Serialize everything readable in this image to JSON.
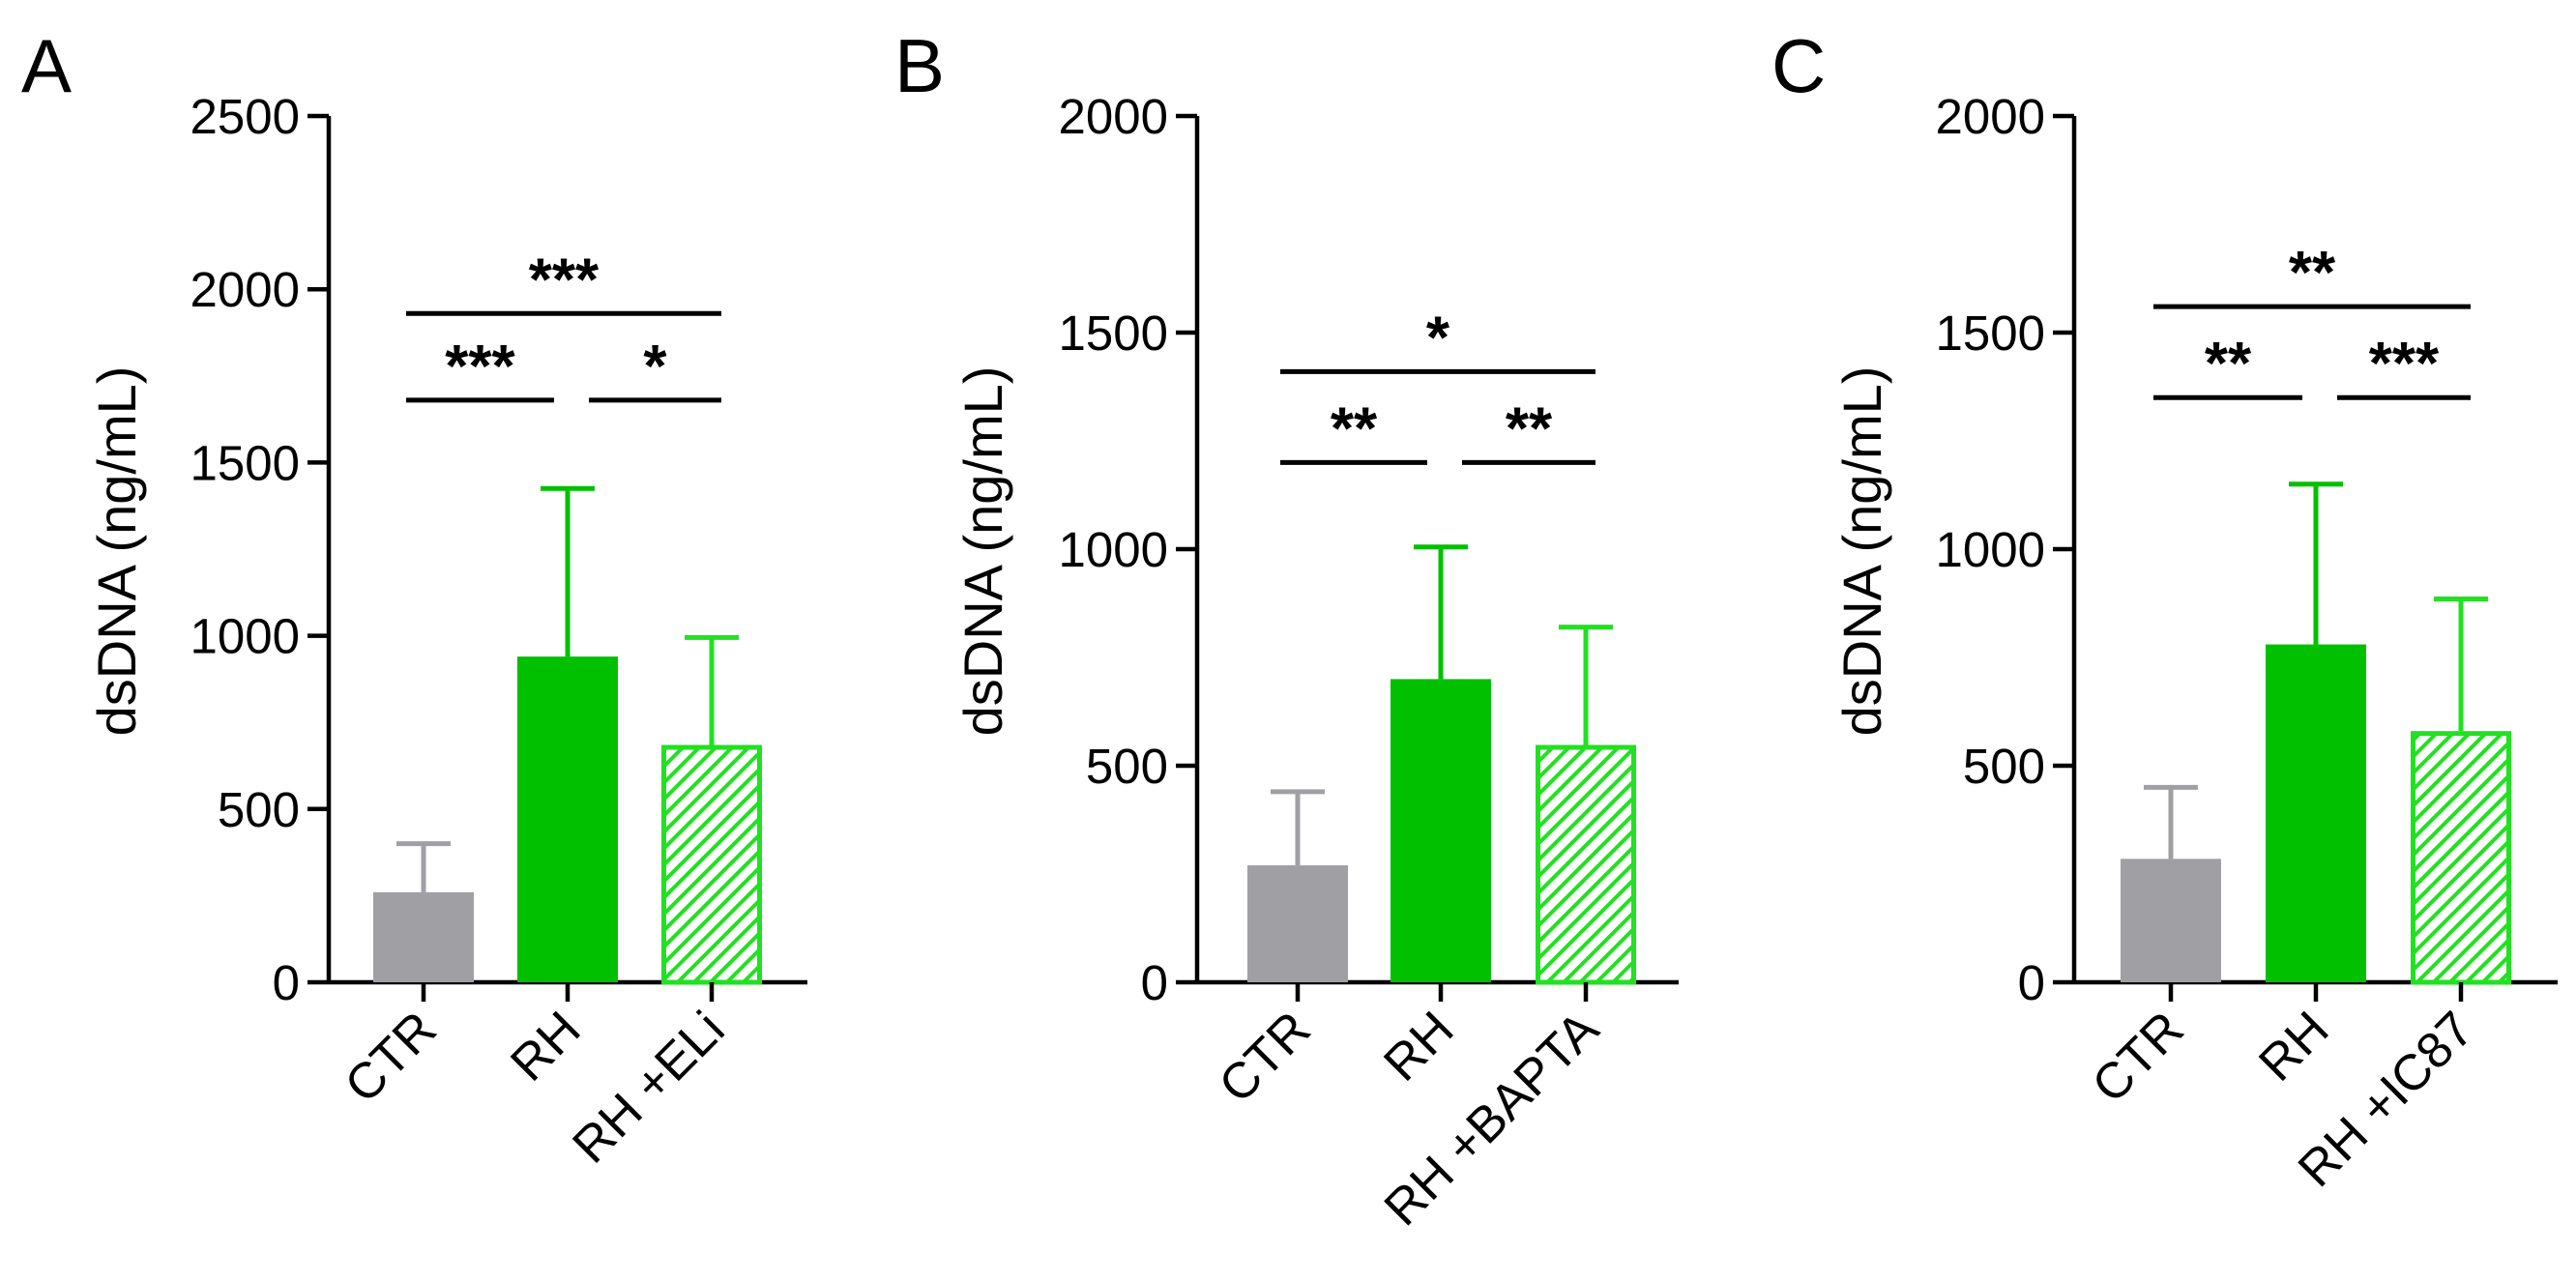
{
  "colors": {
    "ctr": "#a0a0a4",
    "rh": "#00c000",
    "hatch": "#22e022"
  },
  "chart_data": [
    {
      "type": "bar",
      "panel": "A",
      "ylabel": "dsDNA (ng/mL)",
      "ylim": [
        0,
        2500
      ],
      "yticks": [
        0,
        500,
        1000,
        1500,
        2000,
        2500
      ],
      "categories": [
        "CTR",
        "RH",
        "RH +ELi"
      ],
      "values": [
        260,
        940,
        685
      ],
      "errors": [
        140,
        485,
        310
      ],
      "styles": [
        "ctr",
        "rh",
        "hatch"
      ],
      "significance": [
        {
          "from": 0,
          "to": 1,
          "label": "***",
          "y": 1680
        },
        {
          "from": 1,
          "to": 2,
          "label": "*",
          "y": 1680
        },
        {
          "from": 0,
          "to": 2,
          "label": "***",
          "y": 1930
        }
      ]
    },
    {
      "type": "bar",
      "panel": "B",
      "ylabel": "dsDNA (ng/mL)",
      "ylim": [
        0,
        2000
      ],
      "yticks": [
        0,
        500,
        1000,
        1500,
        2000
      ],
      "categories": [
        "CTR",
        "RH",
        "RH +BAPTA"
      ],
      "values": [
        270,
        700,
        548
      ],
      "errors": [
        170,
        305,
        272
      ],
      "styles": [
        "ctr",
        "rh",
        "hatch"
      ],
      "significance": [
        {
          "from": 0,
          "to": 1,
          "label": "**",
          "y": 1200
        },
        {
          "from": 1,
          "to": 2,
          "label": "**",
          "y": 1200
        },
        {
          "from": 0,
          "to": 2,
          "label": "*",
          "y": 1410
        }
      ]
    },
    {
      "type": "bar",
      "panel": "C",
      "ylabel": "dsDNA (ng/mL)",
      "ylim": [
        0,
        2000
      ],
      "yticks": [
        0,
        500,
        1000,
        1500,
        2000
      ],
      "categories": [
        "CTR",
        "RH",
        "RH +IC87"
      ],
      "values": [
        285,
        780,
        580
      ],
      "errors": [
        165,
        370,
        305
      ],
      "styles": [
        "ctr",
        "rh",
        "hatch"
      ],
      "significance": [
        {
          "from": 0,
          "to": 1,
          "label": "**",
          "y": 1350
        },
        {
          "from": 1,
          "to": 2,
          "label": "***",
          "y": 1350
        },
        {
          "from": 0,
          "to": 2,
          "label": "**",
          "y": 1560
        }
      ]
    }
  ]
}
